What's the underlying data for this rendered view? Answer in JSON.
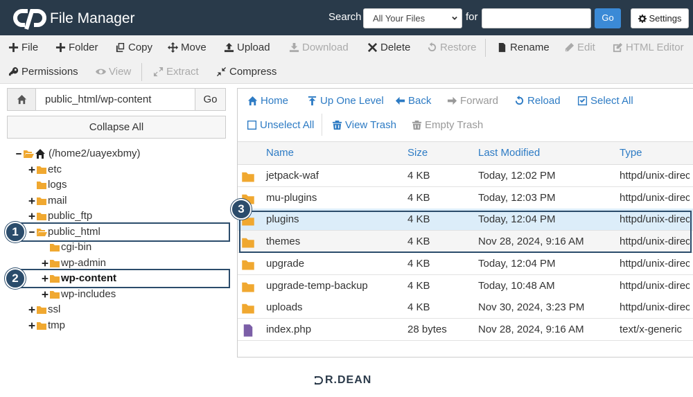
{
  "header": {
    "title": "File Manager",
    "search_label": "Search",
    "search_scope": "All Your Files",
    "for_label": "for",
    "go_button": "Go",
    "settings_button": "Settings"
  },
  "toolbar": {
    "row1": [
      {
        "label": "File"
      },
      {
        "label": "Folder"
      },
      {
        "label": "Copy"
      },
      {
        "label": "Move"
      },
      {
        "label": "Upload"
      },
      {
        "label": "Download",
        "disabled": true
      },
      {
        "label": "Delete"
      },
      {
        "label": "Restore",
        "disabled": true
      },
      {
        "label": "Rename"
      },
      {
        "label": "Edit",
        "disabled": true
      },
      {
        "label": "HTML Editor",
        "disabled": true
      }
    ],
    "row2": [
      {
        "label": "Permissions"
      },
      {
        "label": "View",
        "disabled": true
      },
      {
        "label": "Extract",
        "disabled": true
      },
      {
        "label": "Compress"
      }
    ]
  },
  "sidebar": {
    "path": "public_html/wp-content",
    "go_button": "Go",
    "collapse_button": "Collapse All",
    "tree": [
      {
        "label": "(/home2/uayexbmy)",
        "depth": 0,
        "expanded": true,
        "home": true
      },
      {
        "label": "etc",
        "depth": 1,
        "expanded": false
      },
      {
        "label": "logs",
        "depth": 1
      },
      {
        "label": "mail",
        "depth": 1,
        "expanded": false
      },
      {
        "label": "public_ftp",
        "depth": 1,
        "expanded": false
      },
      {
        "label": "public_html",
        "depth": 1,
        "expanded": true
      },
      {
        "label": "cgi-bin",
        "depth": 2
      },
      {
        "label": "wp-admin",
        "depth": 2,
        "expanded": false
      },
      {
        "label": "wp-content",
        "depth": 2,
        "expanded": false,
        "selected": true
      },
      {
        "label": "wp-includes",
        "depth": 2,
        "expanded": false
      },
      {
        "label": "ssl",
        "depth": 1,
        "expanded": false
      },
      {
        "label": "tmp",
        "depth": 1,
        "expanded": false
      }
    ]
  },
  "navigation": {
    "row1": [
      {
        "label": "Home"
      },
      {
        "label": "Up One Level"
      },
      {
        "label": "Back"
      },
      {
        "label": "Forward",
        "disabled": true
      },
      {
        "label": "Reload"
      },
      {
        "label": "Select All"
      }
    ],
    "row2": [
      {
        "label": "Unselect All"
      },
      {
        "label": "View Trash"
      },
      {
        "label": "Empty Trash",
        "disabled": true
      }
    ]
  },
  "file_table": {
    "columns": [
      "Name",
      "Size",
      "Last Modified",
      "Type"
    ],
    "rows": [
      {
        "name": "jetpack-waf",
        "size": "4 KB",
        "modified": "Today, 12:02 PM",
        "type": "httpd/unix-directory"
      },
      {
        "name": "mu-plugins",
        "size": "4 KB",
        "modified": "Today, 12:03 PM",
        "type": "httpd/unix-directory"
      },
      {
        "name": "plugins",
        "size": "4 KB",
        "modified": "Today, 12:04 PM",
        "type": "httpd/unix-directory",
        "selected": true
      },
      {
        "name": "themes",
        "size": "4 KB",
        "modified": "Nov 28, 2024, 9:16 AM",
        "type": "httpd/unix-directory"
      },
      {
        "name": "upgrade",
        "size": "4 KB",
        "modified": "Today, 12:04 PM",
        "type": "httpd/unix-directory"
      },
      {
        "name": "upgrade-temp-backup",
        "size": "4 KB",
        "modified": "Today, 10:48 AM",
        "type": "httpd/unix-directory"
      },
      {
        "name": "uploads",
        "size": "4 KB",
        "modified": "Nov 30, 2024, 3:23 PM",
        "type": "httpd/unix-directory"
      },
      {
        "name": "index.php",
        "size": "28 bytes",
        "modified": "Nov 28, 2024, 9:16 AM",
        "type": "text/x-generic"
      }
    ]
  },
  "annotations": [
    "1",
    "2",
    "3"
  ],
  "footer": {
    "brand": "R.DEAN"
  }
}
